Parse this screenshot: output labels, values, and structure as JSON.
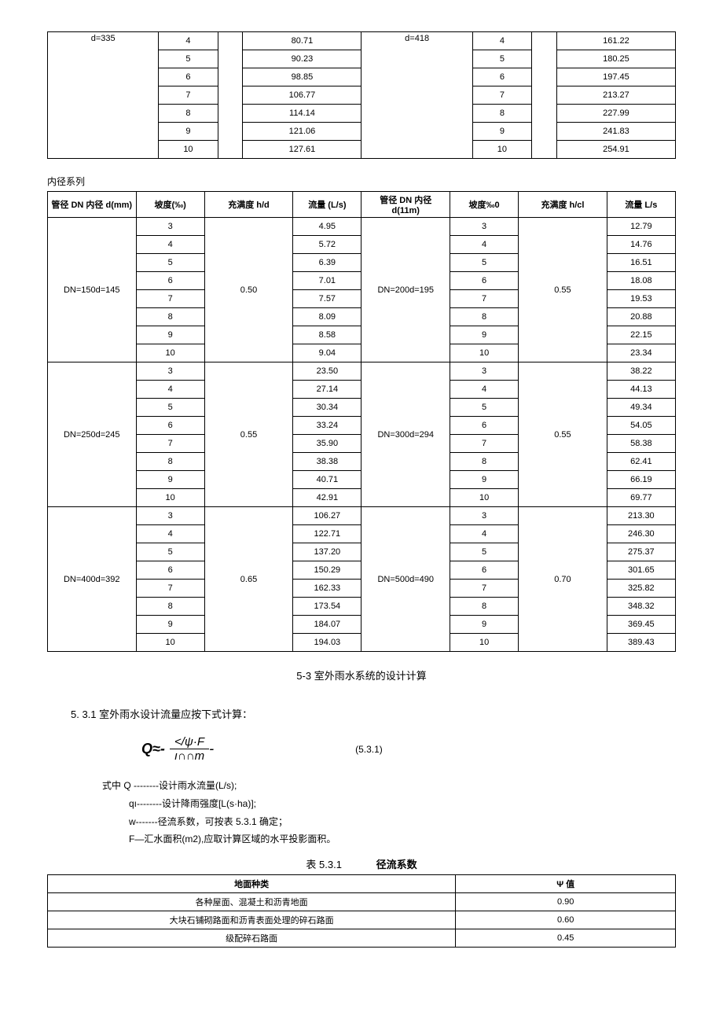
{
  "top_table": {
    "left_d": "d=335",
    "right_d": "d=418",
    "rows": [
      {
        "slope_l": "4",
        "flow_l": "80.71",
        "slope_r": "4",
        "flow_r": "161.22"
      },
      {
        "slope_l": "5",
        "flow_l": "90.23",
        "slope_r": "5",
        "flow_r": "180.25"
      },
      {
        "slope_l": "6",
        "flow_l": "98.85",
        "slope_r": "6",
        "flow_r": "197.45"
      },
      {
        "slope_l": "7",
        "flow_l": "106.77",
        "slope_r": "7",
        "flow_r": "213.27"
      },
      {
        "slope_l": "8",
        "flow_l": "114.14",
        "slope_r": "8",
        "flow_r": "227.99"
      },
      {
        "slope_l": "9",
        "flow_l": "121.06",
        "slope_r": "9",
        "flow_r": "241.83"
      },
      {
        "slope_l": "10",
        "flow_l": "127.61",
        "slope_r": "10",
        "flow_r": "254.91"
      }
    ]
  },
  "series_label": "内径系列",
  "main_table": {
    "headers": {
      "col1": "管径 DN 内径 d(mm)",
      "col2": "坡度(‰)",
      "col3": "充满度 h/d",
      "col4": "流量\n(L/s)",
      "col5": "管径 DN 内径 d(11m)",
      "col6": "坡度‰0",
      "col7": "充满度 h/cl",
      "col8": "流量 L/s"
    },
    "groups": [
      {
        "dn_l": "DN=150d=145",
        "hd_l": "0.50",
        "dn_r": "DN=200d=195",
        "hd_r": "0.55",
        "rows": [
          {
            "s_l": "3",
            "f_l": "4.95",
            "s_r": "3",
            "f_r": "12.79"
          },
          {
            "s_l": "4",
            "f_l": "5.72",
            "s_r": "4",
            "f_r": "14.76"
          },
          {
            "s_l": "5",
            "f_l": "6.39",
            "s_r": "5",
            "f_r": "16.51"
          },
          {
            "s_l": "6",
            "f_l": "7.01",
            "s_r": "6",
            "f_r": "18.08"
          },
          {
            "s_l": "7",
            "f_l": "7.57",
            "s_r": "7",
            "f_r": "19.53"
          },
          {
            "s_l": "8",
            "f_l": "8.09",
            "s_r": "8",
            "f_r": "20.88"
          },
          {
            "s_l": "9",
            "f_l": "8.58",
            "s_r": "9",
            "f_r": "22.15"
          },
          {
            "s_l": "10",
            "f_l": "9.04",
            "s_r": "10",
            "f_r": "23.34"
          }
        ]
      },
      {
        "dn_l": "DN=250d=245",
        "hd_l": "0.55",
        "dn_r": "DN=300d=294",
        "hd_r": "0.55",
        "rows": [
          {
            "s_l": "3",
            "f_l": "23.50",
            "s_r": "3",
            "f_r": "38.22"
          },
          {
            "s_l": "4",
            "f_l": "27.14",
            "s_r": "4",
            "f_r": "44.13"
          },
          {
            "s_l": "5",
            "f_l": "30.34",
            "s_r": "5",
            "f_r": "49.34"
          },
          {
            "s_l": "6",
            "f_l": "33.24",
            "s_r": "6",
            "f_r": "54.05"
          },
          {
            "s_l": "7",
            "f_l": "35.90",
            "s_r": "7",
            "f_r": "58.38"
          },
          {
            "s_l": "8",
            "f_l": "38.38",
            "s_r": "8",
            "f_r": "62.41"
          },
          {
            "s_l": "9",
            "f_l": "40.71",
            "s_r": "9",
            "f_r": "66.19"
          },
          {
            "s_l": "10",
            "f_l": "42.91",
            "s_r": "10",
            "f_r": "69.77"
          }
        ]
      },
      {
        "dn_l": "DN=400d=392",
        "hd_l": "0.65",
        "dn_r": "DN=500d=490",
        "hd_r": "0.70",
        "rows": [
          {
            "s_l": "3",
            "f_l": "106.27",
            "s_r": "3",
            "f_r": "213.30"
          },
          {
            "s_l": "4",
            "f_l": "122.71",
            "s_r": "4",
            "f_r": "246.30"
          },
          {
            "s_l": "5",
            "f_l": "137.20",
            "s_r": "5",
            "f_r": "275.37"
          },
          {
            "s_l": "6",
            "f_l": "150.29",
            "s_r": "6",
            "f_r": "301.65"
          },
          {
            "s_l": "7",
            "f_l": "162.33",
            "s_r": "7",
            "f_r": "325.82"
          },
          {
            "s_l": "8",
            "f_l": "173.54",
            "s_r": "8",
            "f_r": "348.32"
          },
          {
            "s_l": "9",
            "f_l": "184.07",
            "s_r": "9",
            "f_r": "369.45"
          },
          {
            "s_l": "10",
            "f_l": "194.03",
            "s_r": "10",
            "f_r": "389.43"
          }
        ]
      }
    ]
  },
  "section_title": "5-3 室外雨水系统的设计计算",
  "calc_intro": "5.  3.1 室外雨水设计流量应按下式计算：",
  "formula": {
    "lhs": "Q≈-",
    "num": "</ψ·F",
    "den": "ı∩∩m",
    "tail": "-",
    "eqnum": "(5.3.1)"
  },
  "defs": {
    "line1": "式中 Q --------设计雨水流量(L/s);",
    "line2": "qı--------设计降雨强度[L(s·ha)];",
    "line3": "w-------径流系数，可按表 5.3.1 确定；",
    "line4": "F—汇水面积(m2),应取计算区域的水平投影面积。"
  },
  "coeff_caption_left": "表 5.3.1",
  "coeff_caption_right": "径流系数",
  "coeff_table": {
    "headers": {
      "c1": "地面种类",
      "c2": "Ψ 值"
    },
    "rows": [
      {
        "c1": "各种屋面、混凝土和沥青地面",
        "c2": "0.90"
      },
      {
        "c1": "大块石铺砌路面和沥青表面处理的碎石路面",
        "c2": "0.60"
      },
      {
        "c1": "级配碎石路面",
        "c2": "0.45"
      }
    ]
  }
}
